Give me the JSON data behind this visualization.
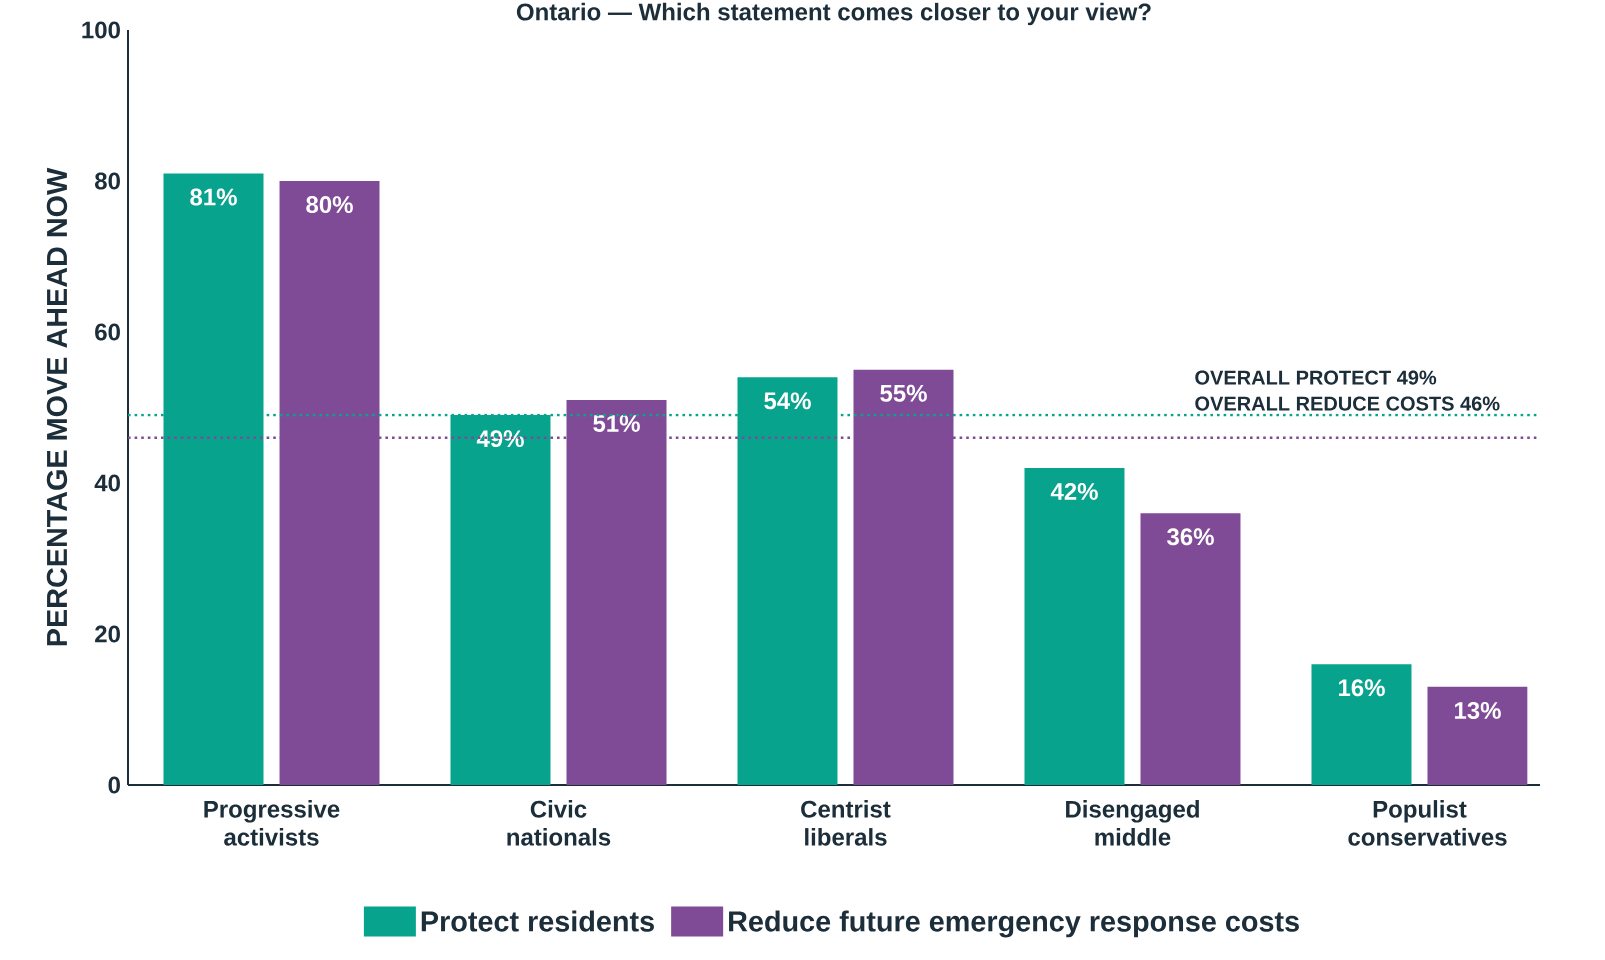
{
  "chart_data": {
    "type": "bar",
    "title": "Ontario — Which statement comes closer to your view?",
    "ylabel": "PERCENTAGE MOVE AHEAD NOW",
    "categories": [
      "Progressive activists",
      "Civic nationals",
      "Centrist liberals",
      "Disengaged middle",
      "Populist conservatives"
    ],
    "series": [
      {
        "name": "Protect residents",
        "color": "#08a38c",
        "values": [
          81,
          49,
          54,
          42,
          16
        ],
        "value_labels": [
          "81%",
          "49%",
          "54%",
          "42%",
          "16%"
        ]
      },
      {
        "name": "Reduce future emergency response costs",
        "color": "#804b96",
        "values": [
          80,
          51,
          55,
          36,
          13
        ],
        "value_labels": [
          "80%",
          "51%",
          "55%",
          "36%",
          "13%"
        ]
      }
    ],
    "ylim": [
      0,
      100
    ],
    "yticks": [
      0,
      20,
      40,
      60,
      80,
      100
    ],
    "ref_lines": [
      {
        "axis": "y",
        "value": 49,
        "label": "OVERALL PROTECT 49%",
        "color": "#08a38c",
        "line_style": "dotted"
      },
      {
        "axis": "y",
        "value": 46,
        "label": "OVERALL REDUCE COSTS 46%",
        "color": "#804b96",
        "line_style": "dotted"
      }
    ],
    "legend": "bottom"
  }
}
